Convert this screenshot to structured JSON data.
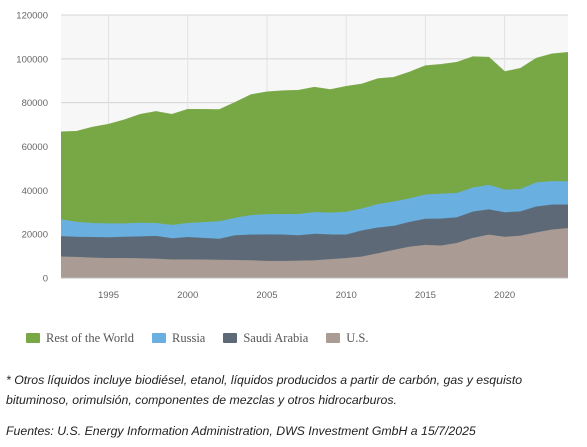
{
  "chart_data": {
    "type": "area",
    "stacked": true,
    "x": [
      1992,
      1993,
      1994,
      1995,
      1996,
      1997,
      1998,
      1999,
      2000,
      2001,
      2002,
      2003,
      2004,
      2005,
      2006,
      2007,
      2008,
      2009,
      2010,
      2011,
      2012,
      2013,
      2014,
      2015,
      2016,
      2017,
      2018,
      2019,
      2020,
      2021,
      2022,
      2023,
      2024
    ],
    "x_ticks": [
      1995,
      2000,
      2005,
      2010,
      2015,
      2020
    ],
    "y_ticks": [
      0,
      20000,
      40000,
      60000,
      80000,
      100000,
      120000
    ],
    "ylim": [
      0,
      120000
    ],
    "grid": true,
    "legend_position": "bottom",
    "series": [
      {
        "name": "U.S.",
        "color": "#aa9c94",
        "values": [
          9500,
          9300,
          9000,
          8800,
          8800,
          8700,
          8500,
          8100,
          8200,
          8100,
          8000,
          7900,
          7800,
          7500,
          7500,
          7600,
          7800,
          8300,
          8800,
          9500,
          11000,
          12500,
          14000,
          14800,
          14500,
          15700,
          18000,
          19500,
          18500,
          19000,
          20500,
          21800,
          22500
        ]
      },
      {
        "name": "Saudi Arabia",
        "color": "#5d6976",
        "values": [
          18800,
          18500,
          18400,
          18300,
          18500,
          18700,
          18900,
          17800,
          18400,
          18000,
          17600,
          19200,
          19500,
          19600,
          19500,
          19200,
          19900,
          19600,
          19500,
          21400,
          22700,
          23500,
          25300,
          26700,
          26800,
          27400,
          30000,
          31000,
          29700,
          30100,
          32300,
          33200,
          33200
        ]
      },
      {
        "name": "Russia",
        "color": "#69afe0",
        "values": [
          26500,
          25300,
          24800,
          24600,
          24600,
          24900,
          24800,
          23900,
          24800,
          25200,
          25600,
          27200,
          28400,
          28800,
          28900,
          28900,
          29800,
          29500,
          29900,
          31400,
          33400,
          34600,
          36000,
          37800,
          38200,
          38500,
          41000,
          42200,
          40000,
          40300,
          43300,
          43900,
          43800
        ]
      },
      {
        "name": "Rest of the World",
        "color": "#78a846",
        "values": [
          66500,
          66800,
          68700,
          70000,
          72000,
          74500,
          75800,
          74500,
          76800,
          76800,
          76700,
          80000,
          83500,
          84800,
          85300,
          85500,
          86900,
          85800,
          87300,
          88400,
          90800,
          91400,
          93800,
          96700,
          97300,
          98300,
          100800,
          100600,
          94000,
          95500,
          100100,
          102100,
          102800
        ]
      }
    ]
  },
  "footnote": "* Otros líquidos incluye biodiésel, etanol, líquidos producidos a partir de carbón, gas y esquisto bituminoso, orimulsión, componentes de mezclas y otros hidrocarburos.",
  "source": "Fuentes: U.S. Energy Information Administration, DWS Investment GmbH a 15/7/2025"
}
